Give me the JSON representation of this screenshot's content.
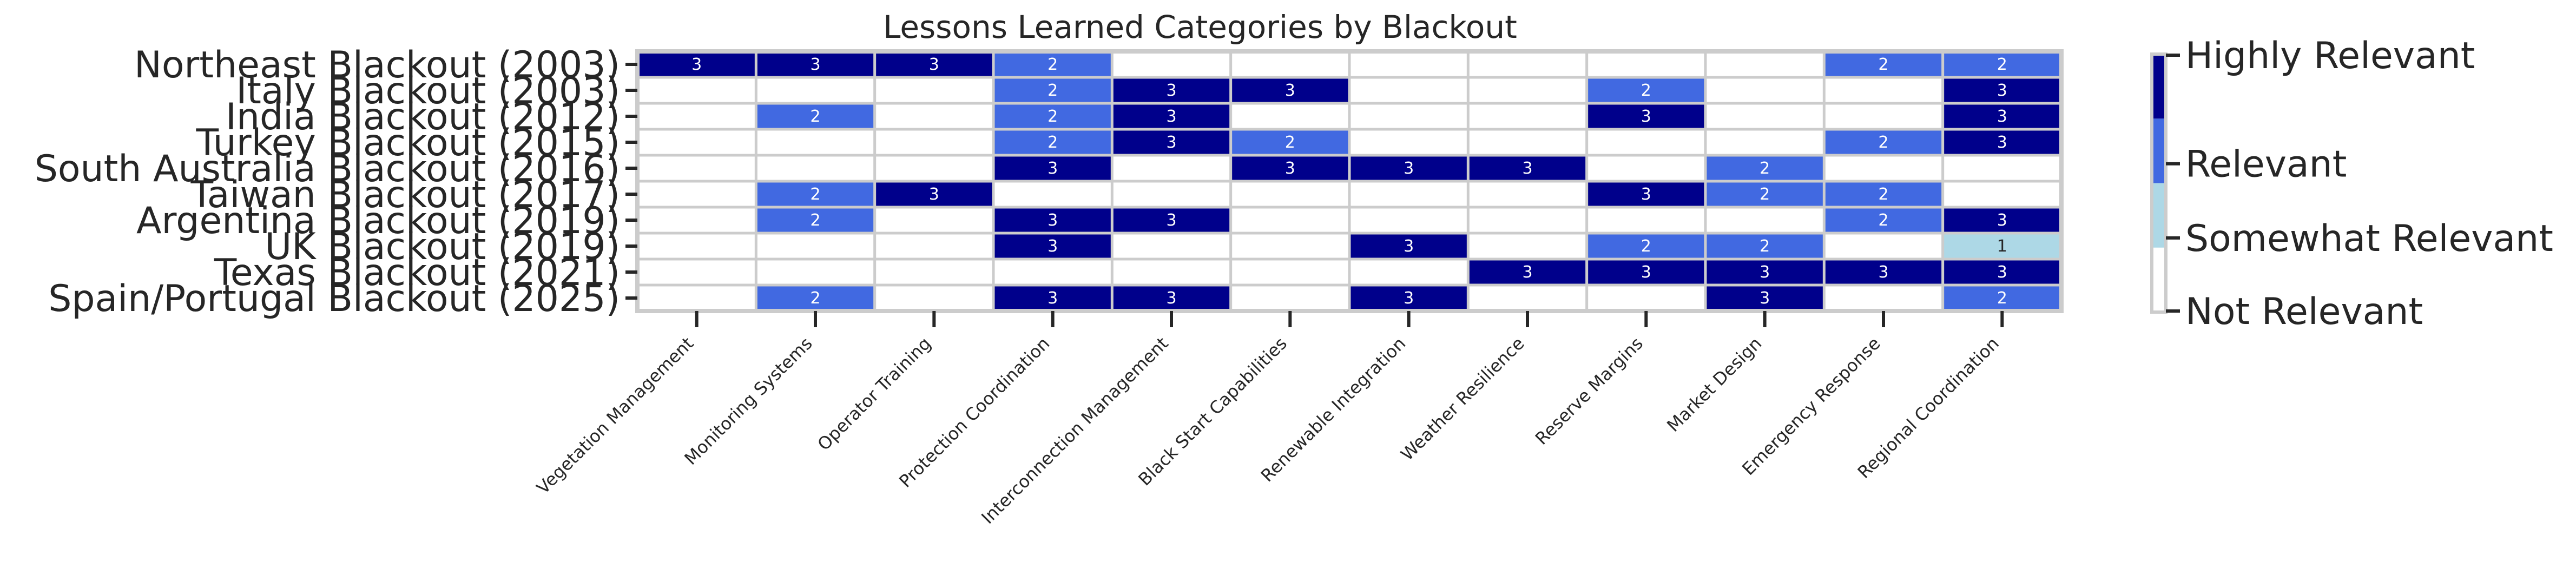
{
  "chart_data": {
    "type": "heatmap",
    "title": "Lessons Learned Categories by Blackout",
    "xlabel": "",
    "ylabel": "",
    "rows": [
      "Northeast Blackout (2003)",
      "Italy Blackout (2003)",
      "India Blackout (2012)",
      "Turkey Blackout (2015)",
      "South Australia Blackout (2016)",
      "Taiwan Blackout (2017)",
      "Argentina Blackout (2019)",
      "UK Blackout (2019)",
      "Texas Blackout (2021)",
      "Spain/Portugal Blackout (2025)"
    ],
    "columns": [
      "Vegetation Management",
      "Monitoring Systems",
      "Operator Training",
      "Protection Coordination",
      "Interconnection Management",
      "Black Start Capabilities",
      "Renewable Integration",
      "Weather Resilience",
      "Reserve Margins",
      "Market Design",
      "Emergency Response",
      "Regional Coordination"
    ],
    "values": [
      [
        3,
        3,
        3,
        2,
        0,
        0,
        0,
        0,
        0,
        0,
        2,
        2
      ],
      [
        0,
        0,
        0,
        2,
        3,
        3,
        0,
        0,
        2,
        0,
        0,
        3
      ],
      [
        0,
        2,
        0,
        2,
        3,
        0,
        0,
        0,
        3,
        0,
        0,
        3
      ],
      [
        0,
        0,
        0,
        2,
        3,
        2,
        0,
        0,
        0,
        0,
        2,
        3
      ],
      [
        0,
        0,
        0,
        3,
        0,
        3,
        3,
        3,
        0,
        2,
        0,
        0
      ],
      [
        0,
        2,
        3,
        0,
        0,
        0,
        0,
        0,
        3,
        2,
        2,
        0
      ],
      [
        0,
        2,
        0,
        3,
        3,
        0,
        0,
        0,
        0,
        0,
        2,
        3
      ],
      [
        0,
        0,
        0,
        3,
        0,
        0,
        3,
        0,
        2,
        2,
        0,
        1
      ],
      [
        0,
        0,
        0,
        0,
        0,
        0,
        0,
        3,
        3,
        3,
        3,
        3
      ],
      [
        0,
        2,
        0,
        3,
        3,
        0,
        3,
        0,
        0,
        3,
        0,
        2
      ]
    ],
    "color_scale": {
      "levels": [
        0,
        1,
        2,
        3
      ],
      "labels": [
        "Not Relevant",
        "Somewhat Relevant",
        "Relevant",
        "Highly Relevant"
      ],
      "colors": [
        "#ffffff",
        "#add8e6",
        "#4169e1",
        "#00008b"
      ]
    },
    "grid": true,
    "legend": "colorbar-right"
  }
}
